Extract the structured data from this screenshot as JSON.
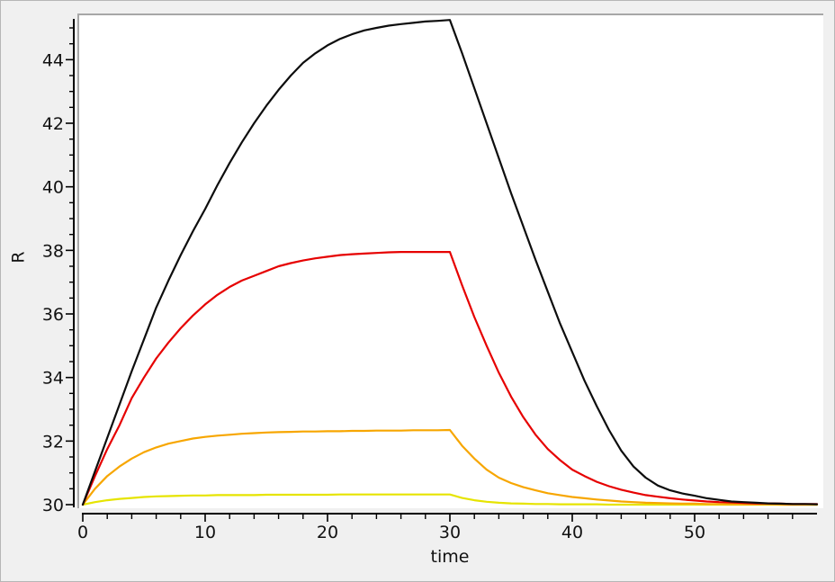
{
  "frame": {
    "background": "#f0f0f0",
    "outer_border_color": "#b6b6b6",
    "plot_background": "#ffffff",
    "plot_border_color": "#a7a7a7",
    "axis_color": "#000000",
    "text_color": "#111111"
  },
  "chart_data": {
    "type": "line",
    "title": "",
    "xlabel": "time",
    "ylabel": "R",
    "xlim": [
      0,
      60
    ],
    "ylim": [
      29.9,
      45.45
    ],
    "grid": false,
    "legend": "none",
    "x_major_ticks": [
      0,
      10,
      20,
      30,
      40,
      50
    ],
    "x_minor_step": 2,
    "x_minor_range": [
      2,
      58
    ],
    "y_major_ticks": [
      30,
      32,
      34,
      36,
      38,
      40,
      42,
      44
    ],
    "y_minor_step": 0.5,
    "y_minor_range": [
      30.5,
      45
    ],
    "x": [
      0,
      1,
      2,
      3,
      4,
      5,
      6,
      7,
      8,
      9,
      10,
      11,
      12,
      13,
      14,
      15,
      16,
      17,
      18,
      19,
      20,
      21,
      22,
      23,
      24,
      25,
      26,
      27,
      28,
      29,
      30,
      31,
      32,
      33,
      34,
      35,
      36,
      37,
      38,
      39,
      40,
      41,
      42,
      43,
      44,
      45,
      46,
      47,
      48,
      49,
      50,
      51,
      52,
      53,
      54,
      55,
      56,
      57,
      58,
      59,
      60
    ],
    "series": [
      {
        "name": "yellow",
        "color": "#e6e400",
        "plateau": 30.32,
        "values": [
          30.0,
          30.08,
          30.14,
          30.18,
          30.21,
          30.24,
          30.26,
          30.27,
          30.28,
          30.29,
          30.29,
          30.3,
          30.3,
          30.3,
          30.3,
          30.31,
          30.31,
          30.31,
          30.31,
          30.31,
          30.31,
          30.32,
          30.32,
          30.32,
          30.32,
          30.32,
          30.32,
          30.32,
          30.32,
          30.32,
          30.32,
          30.21,
          30.14,
          30.09,
          30.06,
          30.04,
          30.03,
          30.02,
          30.02,
          30.01,
          30.01,
          30.01,
          30.01,
          30.0,
          30.0,
          30.0,
          30.0,
          30.0,
          30.0,
          30.0,
          30.0,
          30.0,
          30.0,
          30.0,
          30.0,
          30.0,
          30.0,
          30.0,
          30.0,
          30.0,
          30.0
        ]
      },
      {
        "name": "orange",
        "color": "#f7a600",
        "plateau": 32.35,
        "values": [
          30.0,
          30.5,
          30.9,
          31.2,
          31.45,
          31.65,
          31.8,
          31.92,
          32.0,
          32.08,
          32.13,
          32.17,
          32.2,
          32.23,
          32.25,
          32.27,
          32.28,
          32.29,
          32.3,
          32.3,
          32.31,
          32.31,
          32.32,
          32.32,
          32.33,
          32.33,
          32.33,
          32.34,
          32.34,
          32.34,
          32.35,
          31.85,
          31.45,
          31.1,
          30.85,
          30.68,
          30.55,
          30.45,
          30.36,
          30.3,
          30.24,
          30.2,
          30.16,
          30.13,
          30.1,
          30.08,
          30.06,
          30.05,
          30.04,
          30.03,
          30.03,
          30.02,
          30.02,
          30.01,
          30.01,
          30.01,
          30.01,
          30.0,
          30.0,
          30.0,
          30.0
        ]
      },
      {
        "name": "red",
        "color": "#e60000",
        "plateau": 37.95,
        "values": [
          30.0,
          30.9,
          31.75,
          32.5,
          33.35,
          34.0,
          34.6,
          35.1,
          35.55,
          35.95,
          36.3,
          36.6,
          36.85,
          37.05,
          37.2,
          37.35,
          37.5,
          37.6,
          37.68,
          37.75,
          37.8,
          37.85,
          37.88,
          37.9,
          37.92,
          37.94,
          37.95,
          37.95,
          37.95,
          37.95,
          37.95,
          36.9,
          35.9,
          35.0,
          34.15,
          33.4,
          32.75,
          32.2,
          31.75,
          31.4,
          31.1,
          30.9,
          30.72,
          30.58,
          30.47,
          30.38,
          30.3,
          30.25,
          30.2,
          30.16,
          30.13,
          30.1,
          30.08,
          30.07,
          30.05,
          30.04,
          30.04,
          30.03,
          30.02,
          30.02,
          30.02
        ]
      },
      {
        "name": "black",
        "color": "#0d0d0d",
        "plateau": 45.25,
        "values": [
          30.0,
          31.05,
          32.1,
          33.15,
          34.2,
          35.2,
          36.2,
          37.05,
          37.85,
          38.6,
          39.3,
          40.05,
          40.75,
          41.4,
          42.0,
          42.55,
          43.05,
          43.5,
          43.9,
          44.2,
          44.45,
          44.65,
          44.8,
          44.92,
          45.0,
          45.07,
          45.12,
          45.16,
          45.2,
          45.22,
          45.25,
          44.2,
          43.1,
          42.0,
          40.9,
          39.8,
          38.75,
          37.7,
          36.7,
          35.7,
          34.8,
          33.9,
          33.1,
          32.35,
          31.7,
          31.2,
          30.85,
          30.6,
          30.45,
          30.35,
          30.28,
          30.2,
          30.15,
          30.1,
          30.08,
          30.06,
          30.04,
          30.03,
          30.02,
          30.02,
          30.01
        ]
      }
    ]
  }
}
